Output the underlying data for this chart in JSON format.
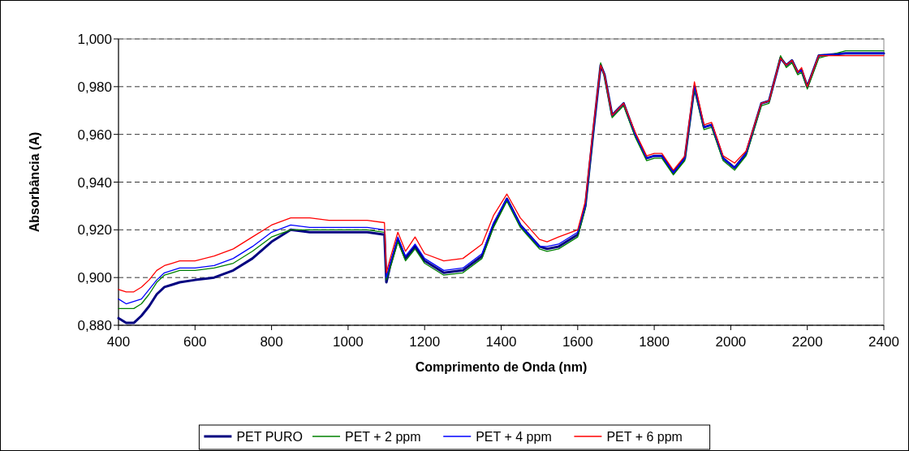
{
  "chart_data": {
    "type": "line",
    "xlabel": "Comprimento de Onda (nm)",
    "ylabel": "Absorbância (A)",
    "x": [
      400,
      420,
      440,
      460,
      480,
      500,
      520,
      540,
      560,
      600,
      650,
      700,
      750,
      800,
      850,
      900,
      950,
      1000,
      1050,
      1095,
      1100,
      1110,
      1130,
      1150,
      1175,
      1200,
      1250,
      1300,
      1350,
      1380,
      1415,
      1450,
      1500,
      1520,
      1550,
      1600,
      1620,
      1640,
      1660,
      1670,
      1690,
      1720,
      1750,
      1780,
      1800,
      1820,
      1850,
      1880,
      1905,
      1930,
      1950,
      1980,
      2010,
      2040,
      2080,
      2100,
      2130,
      2145,
      2160,
      2175,
      2185,
      2200,
      2230,
      2300,
      2400
    ],
    "series": [
      {
        "name": "PET PURO",
        "color": "#000080",
        "values": [
          0.883,
          0.881,
          0.881,
          0.884,
          0.888,
          0.893,
          0.896,
          0.897,
          0.898,
          0.899,
          0.9,
          0.903,
          0.908,
          0.915,
          0.92,
          0.919,
          0.919,
          0.919,
          0.919,
          0.918,
          0.898,
          0.905,
          0.916,
          0.908,
          0.913,
          0.907,
          0.902,
          0.903,
          0.909,
          0.922,
          0.933,
          0.922,
          0.913,
          0.912,
          0.913,
          0.918,
          0.93,
          0.96,
          0.989,
          0.985,
          0.968,
          0.973,
          0.96,
          0.95,
          0.951,
          0.951,
          0.944,
          0.95,
          0.98,
          0.963,
          0.964,
          0.95,
          0.946,
          0.952,
          0.973,
          0.974,
          0.992,
          0.989,
          0.991,
          0.986,
          0.987,
          0.98,
          0.993,
          0.994,
          0.994
        ]
      },
      {
        "name": "PET + 2 ppm",
        "color": "#008000",
        "values": [
          0.887,
          0.887,
          0.887,
          0.889,
          0.893,
          0.898,
          0.901,
          0.902,
          0.903,
          0.903,
          0.904,
          0.906,
          0.911,
          0.917,
          0.92,
          0.92,
          0.92,
          0.92,
          0.92,
          0.919,
          0.899,
          0.904,
          0.915,
          0.907,
          0.912,
          0.906,
          0.901,
          0.902,
          0.908,
          0.921,
          0.932,
          0.921,
          0.912,
          0.911,
          0.912,
          0.917,
          0.929,
          0.959,
          0.99,
          0.984,
          0.967,
          0.972,
          0.959,
          0.949,
          0.95,
          0.95,
          0.943,
          0.949,
          0.979,
          0.962,
          0.963,
          0.949,
          0.945,
          0.951,
          0.972,
          0.973,
          0.993,
          0.988,
          0.99,
          0.985,
          0.986,
          0.979,
          0.992,
          0.995,
          0.995
        ]
      },
      {
        "name": "PET + 4 ppm",
        "color": "#0000ff",
        "values": [
          0.891,
          0.889,
          0.89,
          0.891,
          0.895,
          0.899,
          0.902,
          0.903,
          0.904,
          0.904,
          0.905,
          0.908,
          0.913,
          0.919,
          0.922,
          0.921,
          0.921,
          0.921,
          0.921,
          0.92,
          0.9,
          0.906,
          0.917,
          0.909,
          0.914,
          0.908,
          0.903,
          0.904,
          0.91,
          0.923,
          0.933,
          0.922,
          0.913,
          0.913,
          0.914,
          0.919,
          0.93,
          0.96,
          0.989,
          0.985,
          0.968,
          0.973,
          0.96,
          0.95,
          0.951,
          0.951,
          0.944,
          0.95,
          0.98,
          0.963,
          0.964,
          0.95,
          0.946,
          0.952,
          0.973,
          0.974,
          0.992,
          0.989,
          0.991,
          0.986,
          0.987,
          0.98,
          0.993,
          0.994,
          0.994
        ]
      },
      {
        "name": "PET + 6 ppm",
        "color": "#ff0000",
        "values": [
          0.895,
          0.894,
          0.894,
          0.896,
          0.899,
          0.903,
          0.905,
          0.906,
          0.907,
          0.907,
          0.909,
          0.912,
          0.917,
          0.922,
          0.925,
          0.925,
          0.924,
          0.924,
          0.924,
          0.923,
          0.902,
          0.908,
          0.919,
          0.911,
          0.917,
          0.91,
          0.907,
          0.908,
          0.914,
          0.926,
          0.935,
          0.925,
          0.916,
          0.915,
          0.917,
          0.92,
          0.932,
          0.962,
          0.989,
          0.985,
          0.968,
          0.973,
          0.961,
          0.951,
          0.952,
          0.952,
          0.945,
          0.951,
          0.982,
          0.964,
          0.965,
          0.951,
          0.948,
          0.953,
          0.973,
          0.974,
          0.992,
          0.989,
          0.991,
          0.986,
          0.988,
          0.98,
          0.993,
          0.993,
          0.993
        ]
      }
    ],
    "xlim": [
      400,
      2400
    ],
    "xticks": [
      400,
      600,
      800,
      1000,
      1200,
      1400,
      1600,
      1800,
      2000,
      2200,
      2400
    ],
    "ylim": [
      0.88,
      1
    ],
    "yticks": [
      {
        "value": 0.88,
        "label": "0,880"
      },
      {
        "value": 0.9,
        "label": "0,900"
      },
      {
        "value": 0.92,
        "label": "0,920"
      },
      {
        "value": 0.94,
        "label": "0,940"
      },
      {
        "value": 0.96,
        "label": "0,960"
      },
      {
        "value": 0.98,
        "label": "0,980"
      },
      {
        "value": 1,
        "label": "1,000"
      }
    ],
    "grid": "y",
    "legend": "bottom",
    "marker": "none",
    "line_style": "solid"
  }
}
